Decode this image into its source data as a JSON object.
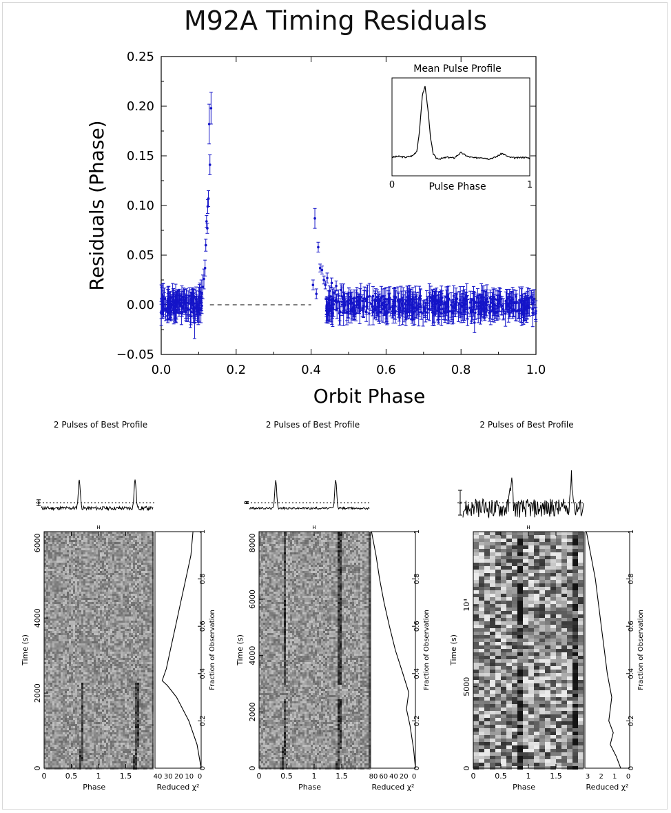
{
  "page_title": "M92A Timing Residuals",
  "chart_data": [
    {
      "type": "scatter",
      "title": "M92A Timing Residuals",
      "xlabel": "Orbit Phase",
      "ylabel": "Residuals (Phase)",
      "xlim": [
        0.0,
        1.0
      ],
      "ylim": [
        -0.05,
        0.25
      ],
      "x_ticks": [
        "0.0",
        "0.2",
        "0.4",
        "0.6",
        "0.8",
        "1.0"
      ],
      "y_ticks": [
        "−0.05",
        "0.00",
        "0.05",
        "0.10",
        "0.15",
        "0.20",
        "0.25"
      ],
      "marker_color": "#1414c8",
      "reference_line": {
        "y": 0.0,
        "style": "dashed",
        "from_x": 0.13,
        "to_x": 0.4
      },
      "error_bars": true,
      "points": [
        {
          "x": 0.005,
          "y": 0.002,
          "err": 0.012
        },
        {
          "x": 0.012,
          "y": -0.004,
          "err": 0.012
        },
        {
          "x": 0.018,
          "y": 0.006,
          "err": 0.012
        },
        {
          "x": 0.025,
          "y": -0.002,
          "err": 0.011
        },
        {
          "x": 0.032,
          "y": 0.004,
          "err": 0.012
        },
        {
          "x": 0.04,
          "y": -0.006,
          "err": 0.012
        },
        {
          "x": 0.047,
          "y": 0.003,
          "err": 0.011
        },
        {
          "x": 0.054,
          "y": -0.008,
          "err": 0.012
        },
        {
          "x": 0.06,
          "y": 0.005,
          "err": 0.012
        },
        {
          "x": 0.066,
          "y": -0.003,
          "err": 0.013
        },
        {
          "x": 0.072,
          "y": 0.002,
          "err": 0.012
        },
        {
          "x": 0.078,
          "y": -0.01,
          "err": 0.013
        },
        {
          "x": 0.084,
          "y": 0.004,
          "err": 0.012
        },
        {
          "x": 0.089,
          "y": -0.018,
          "err": 0.016
        },
        {
          "x": 0.094,
          "y": 0.001,
          "err": 0.013
        },
        {
          "x": 0.099,
          "y": -0.006,
          "err": 0.014
        },
        {
          "x": 0.103,
          "y": 0.008,
          "err": 0.014
        },
        {
          "x": 0.107,
          "y": 0.012,
          "err": 0.013
        },
        {
          "x": 0.111,
          "y": 0.018,
          "err": 0.012
        },
        {
          "x": 0.114,
          "y": 0.026,
          "err": 0.01
        },
        {
          "x": 0.117,
          "y": 0.037,
          "err": 0.008
        },
        {
          "x": 0.119,
          "y": 0.06,
          "err": 0.006
        },
        {
          "x": 0.121,
          "y": 0.084,
          "err": 0.006
        },
        {
          "x": 0.123,
          "y": 0.077,
          "err": 0.005
        },
        {
          "x": 0.124,
          "y": 0.099,
          "err": 0.007
        },
        {
          "x": 0.126,
          "y": 0.107,
          "err": 0.008
        },
        {
          "x": 0.128,
          "y": 0.182,
          "err": 0.02
        },
        {
          "x": 0.13,
          "y": 0.141,
          "err": 0.01
        },
        {
          "x": 0.133,
          "y": 0.198,
          "err": 0.016
        },
        {
          "x": 0.405,
          "y": 0.02,
          "err": 0.005
        },
        {
          "x": 0.41,
          "y": 0.087,
          "err": 0.01
        },
        {
          "x": 0.414,
          "y": 0.011,
          "err": 0.005
        },
        {
          "x": 0.419,
          "y": 0.058,
          "err": 0.005
        },
        {
          "x": 0.424,
          "y": 0.037,
          "err": 0.004
        },
        {
          "x": 0.429,
          "y": 0.035,
          "err": 0.004
        },
        {
          "x": 0.434,
          "y": 0.025,
          "err": 0.004
        },
        {
          "x": 0.438,
          "y": 0.02,
          "err": 0.004
        },
        {
          "x": 0.443,
          "y": 0.027,
          "err": 0.005
        },
        {
          "x": 0.449,
          "y": 0.014,
          "err": 0.005
        },
        {
          "x": 0.455,
          "y": 0.022,
          "err": 0.005
        },
        {
          "x": 0.461,
          "y": 0.012,
          "err": 0.005
        },
        {
          "x": 0.467,
          "y": 0.019,
          "err": 0.005
        },
        {
          "x": 0.473,
          "y": 0.009,
          "err": 0.006
        },
        {
          "x": 0.48,
          "y": 0.015,
          "err": 0.006
        },
        {
          "x": 0.488,
          "y": 0.007,
          "err": 0.006
        },
        {
          "x": 0.496,
          "y": 0.003,
          "err": 0.008
        },
        {
          "x": 0.505,
          "y": 0.008,
          "err": 0.007
        },
        {
          "x": 0.515,
          "y": -0.002,
          "err": 0.008
        },
        {
          "x": 0.526,
          "y": 0.004,
          "err": 0.007
        },
        {
          "x": 0.537,
          "y": -0.004,
          "err": 0.008
        },
        {
          "x": 0.548,
          "y": 0.006,
          "err": 0.008
        },
        {
          "x": 0.56,
          "y": 0.001,
          "err": 0.007
        },
        {
          "x": 0.572,
          "y": -0.005,
          "err": 0.008
        },
        {
          "x": 0.584,
          "y": 0.004,
          "err": 0.007
        },
        {
          "x": 0.596,
          "y": -0.002,
          "err": 0.008
        },
        {
          "x": 0.608,
          "y": 0.003,
          "err": 0.008
        },
        {
          "x": 0.62,
          "y": -0.004,
          "err": 0.007
        },
        {
          "x": 0.632,
          "y": 0.005,
          "err": 0.008
        },
        {
          "x": 0.644,
          "y": -0.001,
          "err": 0.008
        },
        {
          "x": 0.656,
          "y": 0.004,
          "err": 0.008
        },
        {
          "x": 0.668,
          "y": -0.006,
          "err": 0.009
        },
        {
          "x": 0.68,
          "y": 0.002,
          "err": 0.008
        },
        {
          "x": 0.692,
          "y": 0.006,
          "err": 0.009
        },
        {
          "x": 0.704,
          "y": -0.003,
          "err": 0.008
        },
        {
          "x": 0.716,
          "y": 0.004,
          "err": 0.008
        },
        {
          "x": 0.728,
          "y": -0.002,
          "err": 0.009
        },
        {
          "x": 0.74,
          "y": 0.005,
          "err": 0.008
        },
        {
          "x": 0.752,
          "y": -0.004,
          "err": 0.008
        },
        {
          "x": 0.764,
          "y": 0.002,
          "err": 0.008
        },
        {
          "x": 0.776,
          "y": -0.006,
          "err": 0.009
        },
        {
          "x": 0.788,
          "y": 0.003,
          "err": 0.008
        },
        {
          "x": 0.8,
          "y": -0.008,
          "err": 0.01
        },
        {
          "x": 0.812,
          "y": 0.004,
          "err": 0.009
        },
        {
          "x": 0.824,
          "y": -0.003,
          "err": 0.009
        },
        {
          "x": 0.836,
          "y": -0.018,
          "err": 0.01
        },
        {
          "x": 0.848,
          "y": 0.002,
          "err": 0.009
        },
        {
          "x": 0.86,
          "y": -0.004,
          "err": 0.009
        },
        {
          "x": 0.872,
          "y": 0.003,
          "err": 0.009
        },
        {
          "x": 0.884,
          "y": -0.006,
          "err": 0.009
        },
        {
          "x": 0.896,
          "y": 0.005,
          "err": 0.009
        },
        {
          "x": 0.908,
          "y": -0.002,
          "err": 0.008
        },
        {
          "x": 0.92,
          "y": 0.004,
          "err": 0.009
        },
        {
          "x": 0.932,
          "y": -0.003,
          "err": 0.009
        },
        {
          "x": 0.944,
          "y": 0.002,
          "err": 0.008
        },
        {
          "x": 0.956,
          "y": -0.005,
          "err": 0.009
        },
        {
          "x": 0.968,
          "y": 0.003,
          "err": 0.008
        },
        {
          "x": 0.98,
          "y": -0.002,
          "err": 0.009
        },
        {
          "x": 0.992,
          "y": 0.001,
          "err": 0.009
        }
      ],
      "inset": {
        "type": "line",
        "title": "Mean Pulse Profile",
        "xlabel": "Pulse Phase",
        "x_ticks": [
          "0",
          "1"
        ],
        "x": [
          0.0,
          0.05,
          0.1,
          0.15,
          0.18,
          0.2,
          0.22,
          0.24,
          0.26,
          0.28,
          0.3,
          0.32,
          0.35,
          0.4,
          0.45,
          0.5,
          0.55,
          0.6,
          0.65,
          0.7,
          0.75,
          0.8,
          0.85,
          0.9,
          0.95,
          1.0
        ],
        "y": [
          0.08,
          0.09,
          0.08,
          0.1,
          0.16,
          0.42,
          0.88,
          1.0,
          0.72,
          0.32,
          0.12,
          0.07,
          0.06,
          0.08,
          0.07,
          0.14,
          0.09,
          0.07,
          0.08,
          0.06,
          0.08,
          0.13,
          0.08,
          0.07,
          0.08,
          0.07
        ]
      }
    },
    {
      "type": "line",
      "title": "2 Pulses of Best Profile",
      "xlabel": "Phase",
      "ylabel": "Time (s)",
      "x_ticks": [
        "0",
        "0.5",
        "1",
        "1.5"
      ],
      "y_ticks": [
        "0",
        "2000",
        "4000",
        "6000"
      ],
      "chi_label": "Reduced χ²",
      "chi_ticks": [
        "40",
        "30",
        "20",
        "10",
        "0"
      ],
      "fraction_label": "Fraction of Observation",
      "fraction_ticks": [
        "0",
        "0.2",
        "0.4",
        "0.6",
        "0.8",
        "1"
      ],
      "profile_peaks": [
        0.68,
        1.68
      ],
      "profile_width": 0.025,
      "baseline_noise": 0.09,
      "error_bar_size": 0.14,
      "time_max": 6300,
      "tracks_end_fraction": 0.37,
      "chi_curve": [
        [
          0.0,
          0.0
        ],
        [
          0.1,
          4.0
        ],
        [
          0.2,
          12.0
        ],
        [
          0.3,
          24.0
        ],
        [
          0.35,
          33.0
        ],
        [
          0.37,
          38.0
        ],
        [
          0.42,
          34.0
        ],
        [
          0.5,
          30.0
        ],
        [
          0.6,
          25.0
        ],
        [
          0.7,
          20.0
        ],
        [
          0.8,
          15.0
        ],
        [
          0.9,
          10.0
        ],
        [
          1.0,
          8.0
        ]
      ],
      "chi_max": 45
    },
    {
      "type": "line",
      "title": "2 Pulses of Best Profile",
      "xlabel": "Phase",
      "ylabel": "Time (s)",
      "x_ticks": [
        "0",
        "0.5",
        "1",
        "1.5"
      ],
      "y_ticks": [
        "0",
        "2000",
        "4000",
        "6000",
        "8000"
      ],
      "chi_label": "Reduced χ²",
      "chi_ticks": [
        "80",
        "60",
        "40",
        "20",
        "0"
      ],
      "fraction_label": "Fraction of Observation",
      "fraction_ticks": [
        "0",
        "0.2",
        "0.4",
        "0.6",
        "0.8",
        "1"
      ],
      "profile_peaks": [
        0.44,
        1.44
      ],
      "profile_width": 0.022,
      "baseline_noise": 0.05,
      "error_bar_size": 0.05,
      "time_max": 8400,
      "tracks_gap_fraction": [
        0.3,
        0.36
      ],
      "chi_curve": [
        [
          0.0,
          0.0
        ],
        [
          0.08,
          4.0
        ],
        [
          0.18,
          12.0
        ],
        [
          0.25,
          20.0
        ],
        [
          0.32,
          15.0
        ],
        [
          0.4,
          28.0
        ],
        [
          0.5,
          45.0
        ],
        [
          0.6,
          58.0
        ],
        [
          0.7,
          70.0
        ],
        [
          0.8,
          80.0
        ],
        [
          0.9,
          88.0
        ],
        [
          1.0,
          98.0
        ]
      ],
      "chi_max": 100
    },
    {
      "type": "line",
      "title": "2 Pulses of Best Profile",
      "xlabel": "Phase",
      "ylabel": "Time (s)",
      "x_ticks": [
        "0",
        "0.5",
        "1",
        "1.5"
      ],
      "y_ticks": [
        "0",
        "5000",
        "10⁴"
      ],
      "chi_label": "Reduced χ²",
      "chi_ticks": [
        "3",
        "2",
        "1",
        "0"
      ],
      "fraction_label": "Fraction of Observation",
      "fraction_ticks": [
        "0",
        "0.2",
        "0.4",
        "0.6",
        "0.8",
        "1"
      ],
      "profile_peaks": [
        0.8,
        1.8
      ],
      "profile_width": 0.03,
      "baseline_noise": 0.45,
      "error_bar_size": 0.6,
      "time_max": 14500,
      "chi_curve": [
        [
          0.0,
          0.6
        ],
        [
          0.05,
          0.9
        ],
        [
          0.1,
          1.3
        ],
        [
          0.15,
          1.1
        ],
        [
          0.2,
          1.4
        ],
        [
          0.3,
          1.2
        ],
        [
          0.4,
          1.5
        ],
        [
          0.5,
          1.7
        ],
        [
          0.6,
          1.9
        ],
        [
          0.7,
          2.1
        ],
        [
          0.8,
          2.3
        ],
        [
          0.9,
          2.6
        ],
        [
          1.0,
          2.9
        ]
      ],
      "chi_max": 3
    }
  ]
}
